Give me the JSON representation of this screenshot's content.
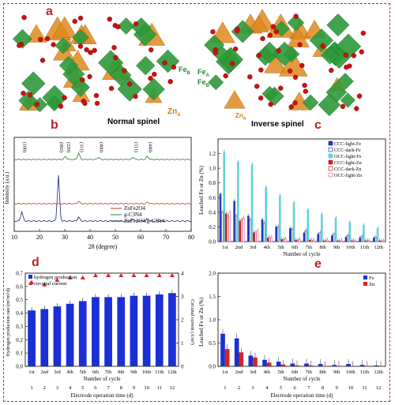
{
  "panels": {
    "a": {
      "label": "a",
      "left_caption": "Normal spinel",
      "right_caption": "Inverse spinel",
      "fe_b": "Fe",
      "fe_b_sub": "B",
      "zn_a": "Zn",
      "zn_a_sub": "A",
      "fe_a2": "Fe",
      "fe_a2_sub": "A",
      "fe_b2": "Fe",
      "fe_b2_sub": "B",
      "zn_a2": "Zn",
      "zn_a2_sub": "A",
      "colors": {
        "octa": "#2e9a3a",
        "tetra": "#e08a1e",
        "oxygen": "#cc1111"
      }
    },
    "b": {
      "label": "b"
    },
    "c": {
      "label": "c"
    },
    "d": {
      "label": "d"
    },
    "e": {
      "label": "e"
    }
  },
  "chart_data": [
    {
      "id": "b",
      "type": "line",
      "xlabel": "2θ (degree)",
      "ylabel": "Intensity (a.u.)",
      "xlim": [
        10,
        80
      ],
      "xticks": [
        10,
        20,
        30,
        40,
        50,
        60,
        70,
        80
      ],
      "peak_labels": [
        {
          "text": "(100)",
          "x": 13
        },
        {
          "text": "(002)",
          "x": 27.5
        },
        {
          "text": "(220)",
          "x": 30.3
        },
        {
          "text": "(311)",
          "x": 35.5
        },
        {
          "text": "(400)",
          "x": 43.3
        },
        {
          "text": "(511)",
          "x": 57.1
        },
        {
          "text": "(440)",
          "x": 62.7
        }
      ],
      "series": [
        {
          "name": "ZnFe2O4",
          "color": "#c0392b"
        },
        {
          "name": "g-C3N4",
          "color": "#2e7d32"
        },
        {
          "name": "ZnFe2O4/g-C3N4",
          "color": "#1a237e"
        }
      ]
    },
    {
      "id": "c",
      "type": "bar",
      "ylabel": "Leached Fe or Zn (%)",
      "xlabel": "Number of cycle",
      "ylim": [
        0,
        1.4
      ],
      "yticks": [
        0,
        0.2,
        0.4,
        0.6,
        0.8,
        1.0,
        1.2
      ],
      "categories": [
        "1st",
        "2nd",
        "3rd",
        "4th",
        "5th",
        "6th",
        "7th",
        "8th",
        "9th",
        "10th",
        "11th",
        "12th"
      ],
      "series": [
        {
          "name": "CCC-light-Fe",
          "color": "#1f3bb3",
          "values": [
            0.65,
            0.55,
            0.35,
            0.3,
            0.2,
            0.18,
            0.12,
            0.1,
            0.08,
            0.06,
            0.05,
            0.05
          ]
        },
        {
          "name": "CCC-dark-Fe",
          "color": "#1f3bb3",
          "values": [
            0.4,
            0.35,
            0.3,
            0.25,
            0.2,
            0.17,
            0.15,
            0.12,
            0.1,
            0.08,
            0.07,
            0.06
          ]
        },
        {
          "name": "OCC-light-Fe",
          "color": "#5fd3d8",
          "values": [
            1.22,
            1.08,
            1.05,
            0.74,
            0.62,
            0.53,
            0.43,
            0.37,
            0.32,
            0.26,
            0.22,
            0.18
          ]
        },
        {
          "name": "CCC-light-Zn",
          "color": "#c62828",
          "values": [
            0.38,
            0.28,
            0.12,
            0.05,
            0.03,
            0.02,
            0.02,
            0.01,
            0.01,
            0.01,
            0.01,
            0.01
          ]
        },
        {
          "name": "CCC-dark-Zn",
          "color": "#c62828",
          "values": [
            0.35,
            0.3,
            0.13,
            0.05,
            0.03,
            0.02,
            0.02,
            0.01,
            0.01,
            0.01,
            0.01,
            0.01
          ]
        },
        {
          "name": "OCC-light-Zn",
          "color": "#e66aa6",
          "values": [
            0.4,
            0.32,
            0.15,
            0.06,
            0.04,
            0.03,
            0.02,
            0.02,
            0.02,
            0.01,
            0.01,
            0.01
          ]
        }
      ]
    },
    {
      "id": "d",
      "type": "bar",
      "ylabel": "Hydrogen production rate (m³/m³/d)",
      "y2label": "Circuital current (A/m²)",
      "xlabel": "Number of cycle",
      "x2label": "Electrode operation time (d)",
      "ylim": [
        0,
        0.7
      ],
      "yticks": [
        0,
        0.1,
        0.2,
        0.3,
        0.4,
        0.5,
        0.6,
        0.7
      ],
      "y2lim": [
        0,
        4
      ],
      "y2ticks": [
        0,
        1,
        2,
        3,
        4
      ],
      "categories": [
        "1st",
        "2nd",
        "3rd",
        "4th",
        "5th",
        "6th",
        "7th",
        "8th",
        "9th",
        "10th",
        "11th",
        "12th"
      ],
      "days": [
        "1",
        "2",
        "3",
        "4",
        "5",
        "6",
        "7",
        "8",
        "9",
        "10",
        "11",
        "12"
      ],
      "series": [
        {
          "name": "hydrogen production",
          "color": "#1a2fd6",
          "values": [
            0.42,
            0.43,
            0.45,
            0.47,
            0.49,
            0.52,
            0.52,
            0.52,
            0.53,
            0.53,
            0.54,
            0.55
          ]
        },
        {
          "name": "circuital current",
          "color": "#d62222",
          "values": [
            3.6,
            3.5,
            3.7,
            3.8,
            3.8,
            3.9,
            3.9,
            3.9,
            3.9,
            3.9,
            3.9,
            3.9
          ]
        }
      ]
    },
    {
      "id": "e",
      "type": "bar",
      "ylabel": "Leached Fe or Zn (%)",
      "xlabel": "Number of cycle",
      "x2label": "Electrode operation time (d)",
      "ylim": [
        0,
        2.0
      ],
      "yticks": [
        0,
        0.5,
        1.0,
        1.5,
        2.0
      ],
      "categories": [
        "1st",
        "2nd",
        "3rd",
        "4th",
        "5th",
        "6th",
        "7th",
        "8th",
        "9th",
        "10th",
        "11th",
        "12th"
      ],
      "days": [
        "1",
        "2",
        "3",
        "4",
        "5",
        "6",
        "7",
        "8",
        "9",
        "10",
        "11",
        "12"
      ],
      "series": [
        {
          "name": "Fe",
          "color": "#1a2fd6",
          "values": [
            0.7,
            0.6,
            0.23,
            0.14,
            0.1,
            0.06,
            0.06,
            0.05,
            0.03,
            0.05,
            0.03,
            0.02
          ]
        },
        {
          "name": "Zn",
          "color": "#d62222",
          "values": [
            0.37,
            0.3,
            0.19,
            0.08,
            0.04,
            0.02,
            0.02,
            0.01,
            0.01,
            0.01,
            0.01,
            0.01
          ]
        }
      ]
    }
  ]
}
